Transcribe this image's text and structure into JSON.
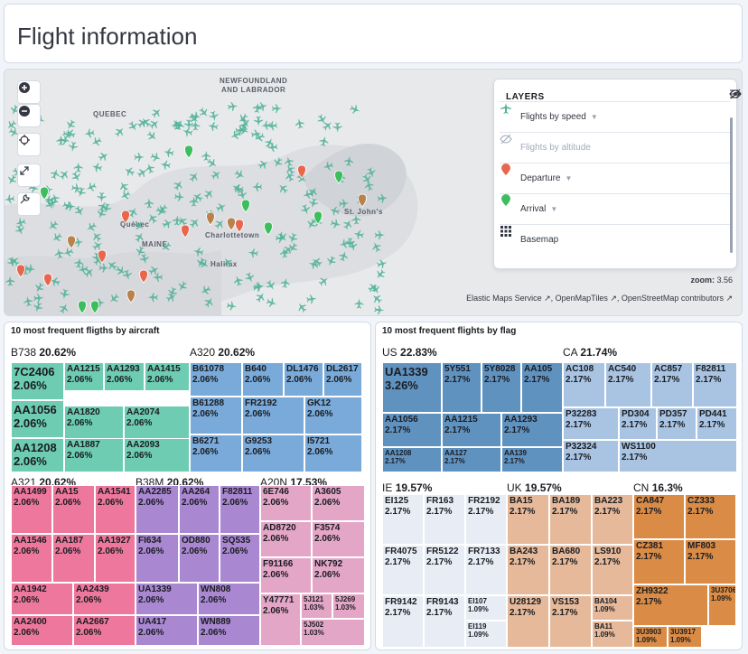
{
  "header": {
    "title": "Flight information"
  },
  "map": {
    "labels": {
      "newfoundland": "NEWFOUNDLAND\nAND LABRADOR",
      "quebec": "QUEBEC",
      "maine": "MAINE",
      "quebec_city": "Québec",
      "charlottetown": "Charlottetown",
      "halifax": "Halifax",
      "st_johns": "St. John's"
    },
    "layers": {
      "title": "LAYERS",
      "items": [
        {
          "label": "Flights by speed",
          "icon": "plane-icon",
          "color": "#54b399",
          "dim": false,
          "caret": true
        },
        {
          "label": "Flights by altitude",
          "icon": "eye-closed-icon",
          "color": "#a2abba",
          "dim": true,
          "caret": false
        },
        {
          "label": "Departure",
          "icon": "marker-icon",
          "color": "#e7664c",
          "dim": false,
          "caret": true
        },
        {
          "label": "Arrival",
          "icon": "marker-icon",
          "color": "#3ebd5e",
          "dim": false,
          "caret": true
        },
        {
          "label": "Basemap",
          "icon": "grid-icon",
          "color": "#343741",
          "dim": false,
          "caret": false
        }
      ]
    },
    "zoom_label": "zoom:",
    "zoom_value": "3.56",
    "attribution": [
      "Elastic Maps Service",
      "OpenMapTiles",
      "OpenStreetMap contributors"
    ]
  },
  "treemap_aircraft": {
    "title": "10 most frequent fligths by aircraft",
    "groups": [
      {
        "name": "B738",
        "pct": "20.62%",
        "color": "#6dccb1",
        "cells": [
          {
            "l": "7C2406",
            "v": "2.06%",
            "big": true
          },
          {
            "l": "AA1056",
            "v": "2.06%",
            "big": true
          },
          {
            "l": "AA1208",
            "v": "2.06%",
            "big": true
          },
          {
            "l": "AA1215",
            "v": "2.06%"
          },
          {
            "l": "AA1293",
            "v": "2.06%"
          },
          {
            "l": "AA1415",
            "v": "2.06%"
          },
          {
            "l": "AA1820",
            "v": "2.06%"
          },
          {
            "l": "AA2074",
            "v": "2.06%"
          },
          {
            "l": "AA1887",
            "v": "2.06%"
          },
          {
            "l": "AA2093",
            "v": "2.06%"
          }
        ]
      },
      {
        "name": "A320",
        "pct": "20.62%",
        "color": "#79aad9",
        "cells": [
          {
            "l": "B61078",
            "v": "2.06%"
          },
          {
            "l": "B640",
            "v": "2.06%"
          },
          {
            "l": "DL1476",
            "v": "2.06%"
          },
          {
            "l": "DL2617",
            "v": "2.06%"
          },
          {
            "l": "B61288",
            "v": "2.06%"
          },
          {
            "l": "FR2192",
            "v": "2.06%"
          },
          {
            "l": "GK12",
            "v": "2.06%"
          },
          {
            "l": "B6271",
            "v": "2.06%"
          },
          {
            "l": "G9253",
            "v": "2.06%"
          },
          {
            "l": "I5721",
            "v": "2.06%"
          }
        ]
      },
      {
        "name": "A321",
        "pct": "20.62%",
        "color": "#ee789d",
        "cells": [
          {
            "l": "AA1499",
            "v": "2.06%"
          },
          {
            "l": "AA15",
            "v": "2.06%"
          },
          {
            "l": "AA1541",
            "v": "2.06%"
          },
          {
            "l": "AA1546",
            "v": "2.06%"
          },
          {
            "l": "AA187",
            "v": "2.06%"
          },
          {
            "l": "AA1927",
            "v": "2.06%"
          },
          {
            "l": "AA1942",
            "v": "2.06%"
          },
          {
            "l": "AA2439",
            "v": "2.06%"
          },
          {
            "l": "AA2400",
            "v": "2.06%"
          },
          {
            "l": "AA2667",
            "v": "2.06%"
          }
        ]
      },
      {
        "name": "B38M",
        "pct": "20.62%",
        "color": "#a987d1",
        "cells": [
          {
            "l": "AA2285",
            "v": "2.06%"
          },
          {
            "l": "AA264",
            "v": "2.06%"
          },
          {
            "l": "F82811",
            "v": "2.06%"
          },
          {
            "l": "FI634",
            "v": "2.06%"
          },
          {
            "l": "OD880",
            "v": "2.06%"
          },
          {
            "l": "SQ535",
            "v": "2.06%"
          },
          {
            "l": "UA1339",
            "v": "2.06%"
          },
          {
            "l": "WN808",
            "v": "2.06%"
          },
          {
            "l": "UA417",
            "v": "2.06%"
          },
          {
            "l": "WN889",
            "v": "2.06%"
          }
        ]
      },
      {
        "name": "A20N",
        "pct": "17.53%",
        "color": "#e4a6c7",
        "cells": [
          {
            "l": "6E746",
            "v": "2.06%"
          },
          {
            "l": "A3605",
            "v": "2.06%"
          },
          {
            "l": "AD8720",
            "v": "2.06%"
          },
          {
            "l": "F3574",
            "v": "2.06%"
          },
          {
            "l": "F91166",
            "v": "2.06%"
          },
          {
            "l": "NK792",
            "v": "2.06%"
          },
          {
            "l": "Y47771",
            "v": "2.06%"
          },
          {
            "l": "5J121",
            "v": "1.03%"
          },
          {
            "l": "5J269",
            "v": "1.03%"
          },
          {
            "l": "5J502",
            "v": "1.03%"
          }
        ]
      }
    ]
  },
  "treemap_flag": {
    "title": "10 most frequent flights by flag",
    "groups": [
      {
        "name": "US",
        "pct": "22.83%",
        "color": "#6092c0",
        "cells": [
          {
            "l": "UA1339",
            "v": "3.26%",
            "big": true
          },
          {
            "l": "5Y551",
            "v": "2.17%"
          },
          {
            "l": "5Y8028",
            "v": "2.17%"
          },
          {
            "l": "AA105",
            "v": "2.17%"
          },
          {
            "l": "AA1056",
            "v": "2.17%"
          },
          {
            "l": "AA1215",
            "v": "2.17%"
          },
          {
            "l": "AA1293",
            "v": "2.17%"
          },
          {
            "l": "AA1208",
            "v": "2.17%"
          },
          {
            "l": "AA127",
            "v": "2.17%"
          },
          {
            "l": "AA139",
            "v": "2.17%"
          }
        ]
      },
      {
        "name": "CA",
        "pct": "21.74%",
        "color": "#a9c4e2",
        "cells": [
          {
            "l": "AC108",
            "v": "2.17%"
          },
          {
            "l": "AC540",
            "v": "2.17%"
          },
          {
            "l": "AC857",
            "v": "2.17%"
          },
          {
            "l": "F82811",
            "v": "2.17%"
          },
          {
            "l": "P32283",
            "v": "2.17%"
          },
          {
            "l": "PD304",
            "v": "2.17%"
          },
          {
            "l": "PD357",
            "v": "2.17%"
          },
          {
            "l": "PD441",
            "v": "2.17%"
          },
          {
            "l": "P32324",
            "v": "2.17%"
          },
          {
            "l": "WS1100",
            "v": "2.17%"
          }
        ]
      },
      {
        "name": "IE",
        "pct": "19.57%",
        "color": "#e8edf5",
        "cells": [
          {
            "l": "EI125",
            "v": "2.17%"
          },
          {
            "l": "FR163",
            "v": "2.17%"
          },
          {
            "l": "FR2192",
            "v": "2.17%"
          },
          {
            "l": "FR4075",
            "v": "2.17%"
          },
          {
            "l": "FR5122",
            "v": "2.17%"
          },
          {
            "l": "FR7133",
            "v": "2.17%"
          },
          {
            "l": "FR9142",
            "v": "2.17%"
          },
          {
            "l": "FR9143",
            "v": "2.17%"
          },
          {
            "l": "EI107",
            "v": "1.09%"
          },
          {
            "l": "EI119",
            "v": "1.09%"
          }
        ]
      },
      {
        "name": "UK",
        "pct": "19.57%",
        "color": "#e5b99a",
        "cells": [
          {
            "l": "BA15",
            "v": "2.17%"
          },
          {
            "l": "BA189",
            "v": "2.17%"
          },
          {
            "l": "BA223",
            "v": "2.17%"
          },
          {
            "l": "BA243",
            "v": "2.17%"
          },
          {
            "l": "BA680",
            "v": "2.17%"
          },
          {
            "l": "LS910",
            "v": "2.17%"
          },
          {
            "l": "U28129",
            "v": "2.17%"
          },
          {
            "l": "VS153",
            "v": "2.17%"
          },
          {
            "l": "BA104",
            "v": "1.09%"
          },
          {
            "l": "BA11",
            "v": "1.09%"
          }
        ]
      },
      {
        "name": "CN",
        "pct": "16.3%",
        "color": "#da8b45",
        "cells": [
          {
            "l": "CA847",
            "v": "2.17%"
          },
          {
            "l": "CZ333",
            "v": "2.17%"
          },
          {
            "l": "CZ381",
            "v": "2.17%"
          },
          {
            "l": "MF803",
            "v": "2.17%"
          },
          {
            "l": "ZH9322",
            "v": "2.17%"
          },
          {
            "l": "3U3706",
            "v": "1.09%"
          },
          {
            "l": "3U3903",
            "v": "1.09%"
          },
          {
            "l": "3U3917",
            "v": "1.09%"
          }
        ]
      }
    ]
  }
}
